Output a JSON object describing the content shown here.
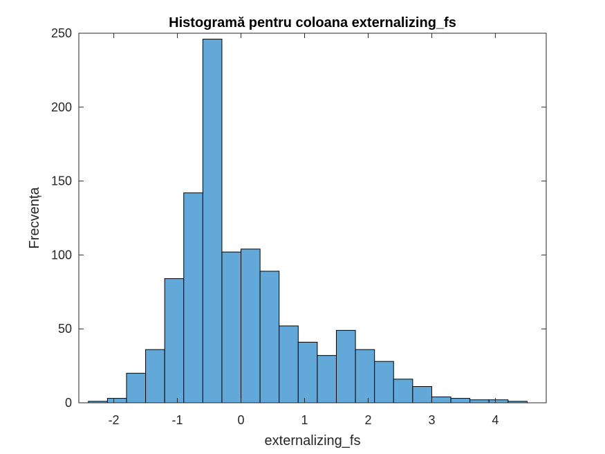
{
  "chart_data": {
    "type": "bar",
    "title": "Histogramă pentru coloana externalizing_fs",
    "xlabel": "externalizing_fs",
    "ylabel": "Frecvența",
    "xlim": [
      -2.55,
      4.8
    ],
    "ylim": [
      0,
      250
    ],
    "xticks": [
      -2,
      -1,
      0,
      1,
      2,
      3,
      4
    ],
    "xtick_labels": [
      "-2",
      "-1",
      "0",
      "1",
      "2",
      "3",
      "4"
    ],
    "yticks": [
      0,
      50,
      100,
      150,
      200,
      250
    ],
    "ytick_labels": [
      "0",
      "50",
      "100",
      "150",
      "200",
      "250"
    ],
    "bin_edges": [
      -2.4,
      -2.1,
      -1.8,
      -1.5,
      -1.2,
      -0.9,
      -0.6,
      -0.3,
      0.0,
      0.3,
      0.6,
      0.9,
      1.2,
      1.5,
      1.8,
      2.1,
      2.4,
      2.7,
      3.0,
      3.3,
      3.6,
      3.9,
      4.2,
      4.5
    ],
    "values": [
      1,
      3,
      20,
      36,
      84,
      142,
      246,
      102,
      104,
      89,
      52,
      41,
      32,
      49,
      36,
      28,
      16,
      11,
      4,
      3,
      2,
      2,
      1
    ],
    "bar_color": "#62A8D8",
    "edge_color": "#000000",
    "grid": false,
    "box": true
  }
}
